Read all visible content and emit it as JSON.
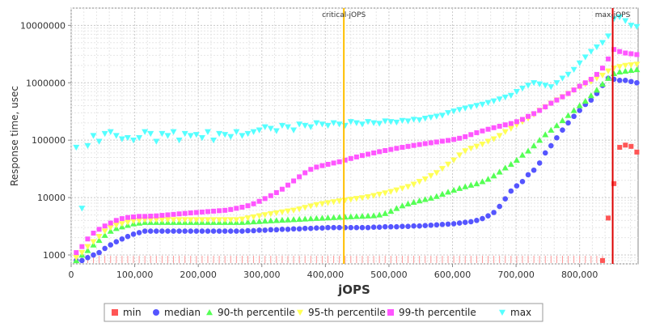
{
  "chart_data": {
    "type": "scatter",
    "title": "",
    "xlabel": "jOPS",
    "ylabel": "Response time, usec",
    "x_scale": "linear",
    "y_scale": "log",
    "xlim": [
      0,
      892000
    ],
    "ylim": [
      700,
      20000000
    ],
    "x_ticks": [
      0,
      100000,
      200000,
      300000,
      400000,
      500000,
      600000,
      700000,
      800000
    ],
    "x_tick_labels": [
      "0",
      "100,000",
      "200,000",
      "300,000",
      "400,000",
      "500,000",
      "600,000",
      "700,000",
      "800,000"
    ],
    "y_ticks": [
      1000,
      10000,
      100000,
      1000000,
      10000000
    ],
    "y_tick_labels": [
      "1000",
      "10000",
      "100000",
      "1000000",
      "10000000"
    ],
    "grid": true,
    "legend_position": "bottom",
    "reference_lines": [
      {
        "label": "critical-jOPS",
        "x": 429000,
        "color": "#ffc000"
      },
      {
        "label": "max-jOPS",
        "x": 852000,
        "color": "#dd0000"
      }
    ],
    "x": [
      8000,
      17000,
      26000,
      35000,
      44000,
      53000,
      62000,
      71000,
      80000,
      89000,
      98000,
      107000,
      116000,
      125000,
      134000,
      143000,
      152000,
      161000,
      170000,
      179000,
      188000,
      197000,
      206000,
      215000,
      224000,
      233000,
      242000,
      251000,
      260000,
      269000,
      278000,
      287000,
      296000,
      305000,
      314000,
      323000,
      332000,
      341000,
      350000,
      359000,
      368000,
      377000,
      386000,
      395000,
      404000,
      413000,
      422000,
      431000,
      440000,
      449000,
      458000,
      467000,
      476000,
      485000,
      494000,
      503000,
      512000,
      521000,
      530000,
      539000,
      548000,
      557000,
      566000,
      575000,
      584000,
      593000,
      602000,
      611000,
      620000,
      629000,
      638000,
      647000,
      656000,
      665000,
      674000,
      683000,
      692000,
      701000,
      710000,
      719000,
      728000,
      737000,
      746000,
      755000,
      764000,
      773000,
      782000,
      791000,
      800000,
      809000,
      818000,
      827000,
      836000,
      845000,
      854000,
      863000,
      872000,
      881000,
      890000
    ],
    "series": [
      {
        "name": "min",
        "color": "#ff5555",
        "marker": "square",
        "points": [
          [
            836000,
            800
          ],
          [
            845000,
            4400
          ],
          [
            854000,
            17500
          ],
          [
            863000,
            75000
          ],
          [
            872000,
            82000
          ],
          [
            881000,
            78000
          ],
          [
            890000,
            62000
          ]
        ]
      },
      {
        "name": "median",
        "color": "#5555ff",
        "marker": "circle",
        "values": [
          800,
          800,
          900,
          1000,
          1100,
          1300,
          1500,
          1700,
          1900,
          2100,
          2300,
          2450,
          2600,
          2600,
          2600,
          2600,
          2600,
          2600,
          2600,
          2600,
          2600,
          2600,
          2600,
          2600,
          2600,
          2600,
          2600,
          2600,
          2600,
          2600,
          2650,
          2650,
          2700,
          2700,
          2750,
          2750,
          2800,
          2800,
          2850,
          2850,
          2900,
          2900,
          2950,
          2950,
          3000,
          3000,
          3000,
          3000,
          3000,
          3000,
          3000,
          3000,
          3050,
          3050,
          3100,
          3100,
          3100,
          3150,
          3150,
          3200,
          3200,
          3250,
          3300,
          3350,
          3400,
          3450,
          3500,
          3600,
          3700,
          3800,
          4000,
          4300,
          4800,
          5500,
          7000,
          9500,
          13000,
          16000,
          19000,
          25000,
          30000,
          40000,
          60000,
          80000,
          110000,
          150000,
          200000,
          260000,
          330000,
          420000,
          500000,
          650000,
          900000,
          1200000,
          1150000,
          1100000,
          1100000,
          1050000,
          1000000
        ]
      },
      {
        "name": "90-th percentile",
        "color": "#55ff55",
        "marker": "triangle-up",
        "values": [
          800,
          1000,
          1200,
          1500,
          1800,
          2200,
          2600,
          2900,
          3100,
          3300,
          3500,
          3600,
          3700,
          3700,
          3700,
          3700,
          3700,
          3700,
          3700,
          3700,
          3700,
          3700,
          3700,
          3700,
          3700,
          3700,
          3700,
          3700,
          3700,
          3700,
          3750,
          3800,
          3850,
          3900,
          3950,
          4000,
          4050,
          4100,
          4150,
          4200,
          4250,
          4300,
          4350,
          4400,
          4450,
          4500,
          4550,
          4600,
          4650,
          4700,
          4750,
          4800,
          4850,
          5000,
          5300,
          5800,
          6500,
          7200,
          7800,
          8300,
          8800,
          9300,
          9800,
          10500,
          11500,
          12500,
          13500,
          14500,
          15500,
          16500,
          17500,
          19000,
          21000,
          24000,
          28000,
          33000,
          38000,
          45000,
          55000,
          65000,
          80000,
          100000,
          125000,
          150000,
          180000,
          220000,
          270000,
          330000,
          400000,
          480000,
          600000,
          750000,
          950000,
          1200000,
          1450000,
          1550000,
          1600000,
          1650000,
          1700000
        ]
      },
      {
        "name": "95-th percentile",
        "color": "#ffff55",
        "marker": "triangle-down",
        "values": [
          900,
          1100,
          1400,
          1700,
          2100,
          2600,
          3000,
          3300,
          3500,
          3700,
          3900,
          4000,
          4100,
          4100,
          4100,
          4100,
          4100,
          4100,
          4100,
          4100,
          4100,
          4100,
          4100,
          4100,
          4100,
          4100,
          4100,
          4100,
          4100,
          4200,
          4400,
          4600,
          4800,
          5000,
          5200,
          5400,
          5600,
          5800,
          6000,
          6300,
          6700,
          7100,
          7500,
          7800,
          8100,
          8400,
          8700,
          9000,
          9300,
          9600,
          9900,
          10300,
          10800,
          11400,
          12000,
          12700,
          13500,
          14500,
          15500,
          17000,
          19000,
          21000,
          24000,
          27000,
          32000,
          38000,
          45000,
          55000,
          65000,
          72000,
          78000,
          85000,
          95000,
          105000,
          120000,
          140000,
          160000,
          185000,
          210000,
          240000,
          280000,
          330000,
          380000,
          440000,
          500000,
          570000,
          650000,
          740000,
          840000,
          950000,
          1050000,
          1200000,
          1350000,
          1600000,
          1800000,
          1900000,
          2000000,
          2050000,
          2100000
        ]
      },
      {
        "name": "99-th percentile",
        "color": "#ff55ff",
        "marker": "square",
        "values": [
          1100,
          1400,
          1900,
          2400,
          2800,
          3200,
          3600,
          4000,
          4300,
          4500,
          4600,
          4700,
          4700,
          4750,
          4800,
          4900,
          5000,
          5100,
          5200,
          5300,
          5400,
          5500,
          5600,
          5700,
          5800,
          5900,
          6000,
          6200,
          6500,
          6800,
          7200,
          7800,
          8600,
          9600,
          10800,
          12200,
          14000,
          16500,
          19500,
          23000,
          27000,
          31000,
          34000,
          36000,
          38000,
          40000,
          42000,
          45000,
          48000,
          51000,
          54000,
          57000,
          60000,
          63000,
          66000,
          69000,
          72000,
          75000,
          78000,
          81000,
          84000,
          87000,
          90000,
          93000,
          96000,
          99000,
          103000,
          108000,
          115000,
          125000,
          135000,
          145000,
          155000,
          165000,
          175000,
          185000,
          195000,
          210000,
          230000,
          260000,
          290000,
          330000,
          380000,
          440000,
          500000,
          570000,
          650000,
          750000,
          870000,
          1000000,
          1150000,
          1400000,
          1800000,
          2600000,
          3800000,
          3500000,
          3300000,
          3200000,
          3100000
        ]
      },
      {
        "name": "max",
        "color": "#55ffff",
        "marker": "triangle-down",
        "values": [
          75000,
          6500,
          80000,
          120000,
          95000,
          130000,
          140000,
          120000,
          105000,
          110000,
          100000,
          110000,
          140000,
          130000,
          95000,
          130000,
          120000,
          140000,
          100000,
          130000,
          120000,
          125000,
          110000,
          140000,
          100000,
          130000,
          125000,
          115000,
          140000,
          120000,
          130000,
          140000,
          150000,
          170000,
          160000,
          145000,
          180000,
          170000,
          150000,
          190000,
          180000,
          170000,
          200000,
          190000,
          180000,
          200000,
          190000,
          180000,
          210000,
          200000,
          190000,
          210000,
          200000,
          195000,
          215000,
          210000,
          205000,
          220000,
          215000,
          230000,
          225000,
          240000,
          250000,
          260000,
          270000,
          300000,
          320000,
          340000,
          360000,
          380000,
          400000,
          420000,
          450000,
          480000,
          520000,
          560000,
          600000,
          700000,
          800000,
          900000,
          1000000,
          950000,
          900000,
          850000,
          1000000,
          1200000,
          1400000,
          1700000,
          2200000,
          2800000,
          3500000,
          4200000,
          5000000,
          6500000,
          13000000,
          14000000,
          12000000,
          10000000,
          9500000
        ]
      }
    ]
  },
  "legend": {
    "items": [
      {
        "label": "min",
        "color": "#ff5555",
        "marker": "square"
      },
      {
        "label": "median",
        "color": "#5555ff",
        "marker": "circle"
      },
      {
        "label": "90-th percentile",
        "color": "#55ff55",
        "marker": "triangle-up"
      },
      {
        "label": "95-th percentile",
        "color": "#ffff55",
        "marker": "triangle-down"
      },
      {
        "label": "99-th percentile",
        "color": "#ff55ff",
        "marker": "square"
      },
      {
        "label": "max",
        "color": "#55ffff",
        "marker": "triangle-down"
      }
    ]
  }
}
